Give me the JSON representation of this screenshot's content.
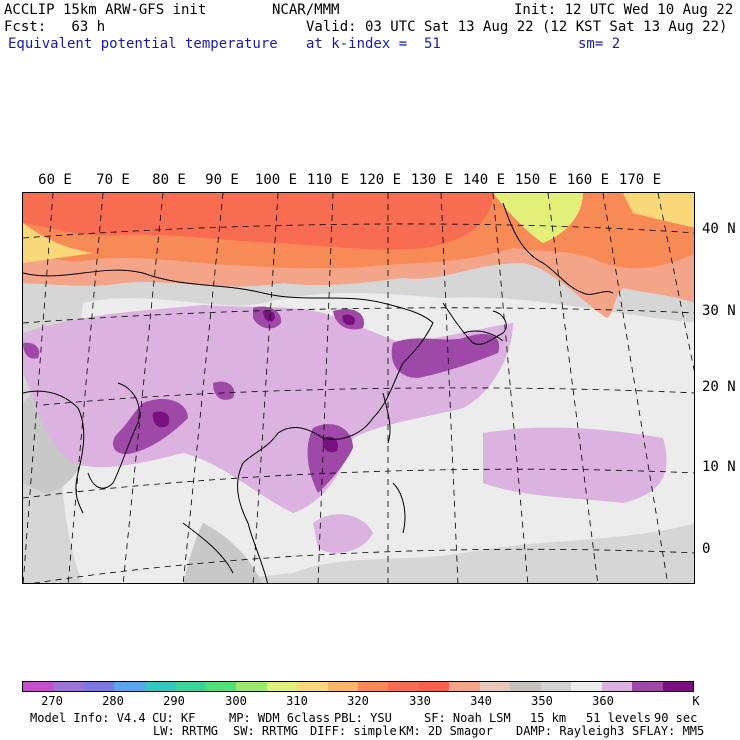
{
  "header": {
    "model_line": "ACCLIP 15km ARW-GFS init",
    "org": "NCAR/MMM",
    "init": "Init: 12 UTC Wed 10 Aug 22",
    "fcst": "Fcst:   63 h",
    "valid": "Valid: 03 UTC Sat 13 Aug 22 (12 KST Sat 13 Aug 22)",
    "field": "Equivalent potential temperature",
    "level": "at k-index =  51",
    "smooth": "sm= 2"
  },
  "map": {
    "longitude_labels": [
      "60 E",
      "70 E",
      "80 E",
      "90 E",
      "100 E",
      "110 E",
      "120 E",
      "130 E",
      "140 E",
      "150 E",
      "160 E",
      "170 E"
    ],
    "latitude_labels": [
      "40 N",
      "30 N",
      "20 N",
      "10 N",
      "0"
    ]
  },
  "colorbar": {
    "colors": [
      "#c650cc",
      "#9d73d8",
      "#7d78e2",
      "#5aa6ee",
      "#30c8c0",
      "#3ad59a",
      "#52df78",
      "#9ce86a",
      "#e2ef78",
      "#f8d878",
      "#f8b868",
      "#f88a58",
      "#f86c52",
      "#f8604c",
      "#f4a488",
      "#e8c8b8",
      "#c8c0bc",
      "#d2d2d2",
      "#ececec",
      "#dcb2e0",
      "#9e48a8",
      "#7a1080"
    ],
    "tick_labels": [
      "270",
      "280",
      "290",
      "300",
      "310",
      "320",
      "330",
      "340",
      "350",
      "360"
    ],
    "unit": "K"
  },
  "footer": {
    "line1": [
      "Model Info: V4.4",
      "CU: KF",
      "MP: WDM 6class",
      "PBL: YSU",
      "SF: Noah LSM",
      "15 km",
      "51 levels",
      "90 sec"
    ],
    "line2": [
      "LW: RRTMG",
      "SW: RRTMG",
      "DIFF: simple",
      "KM: 2D Smagor",
      "DAMP: Rayleigh3",
      "SFLAY: MM5"
    ]
  }
}
